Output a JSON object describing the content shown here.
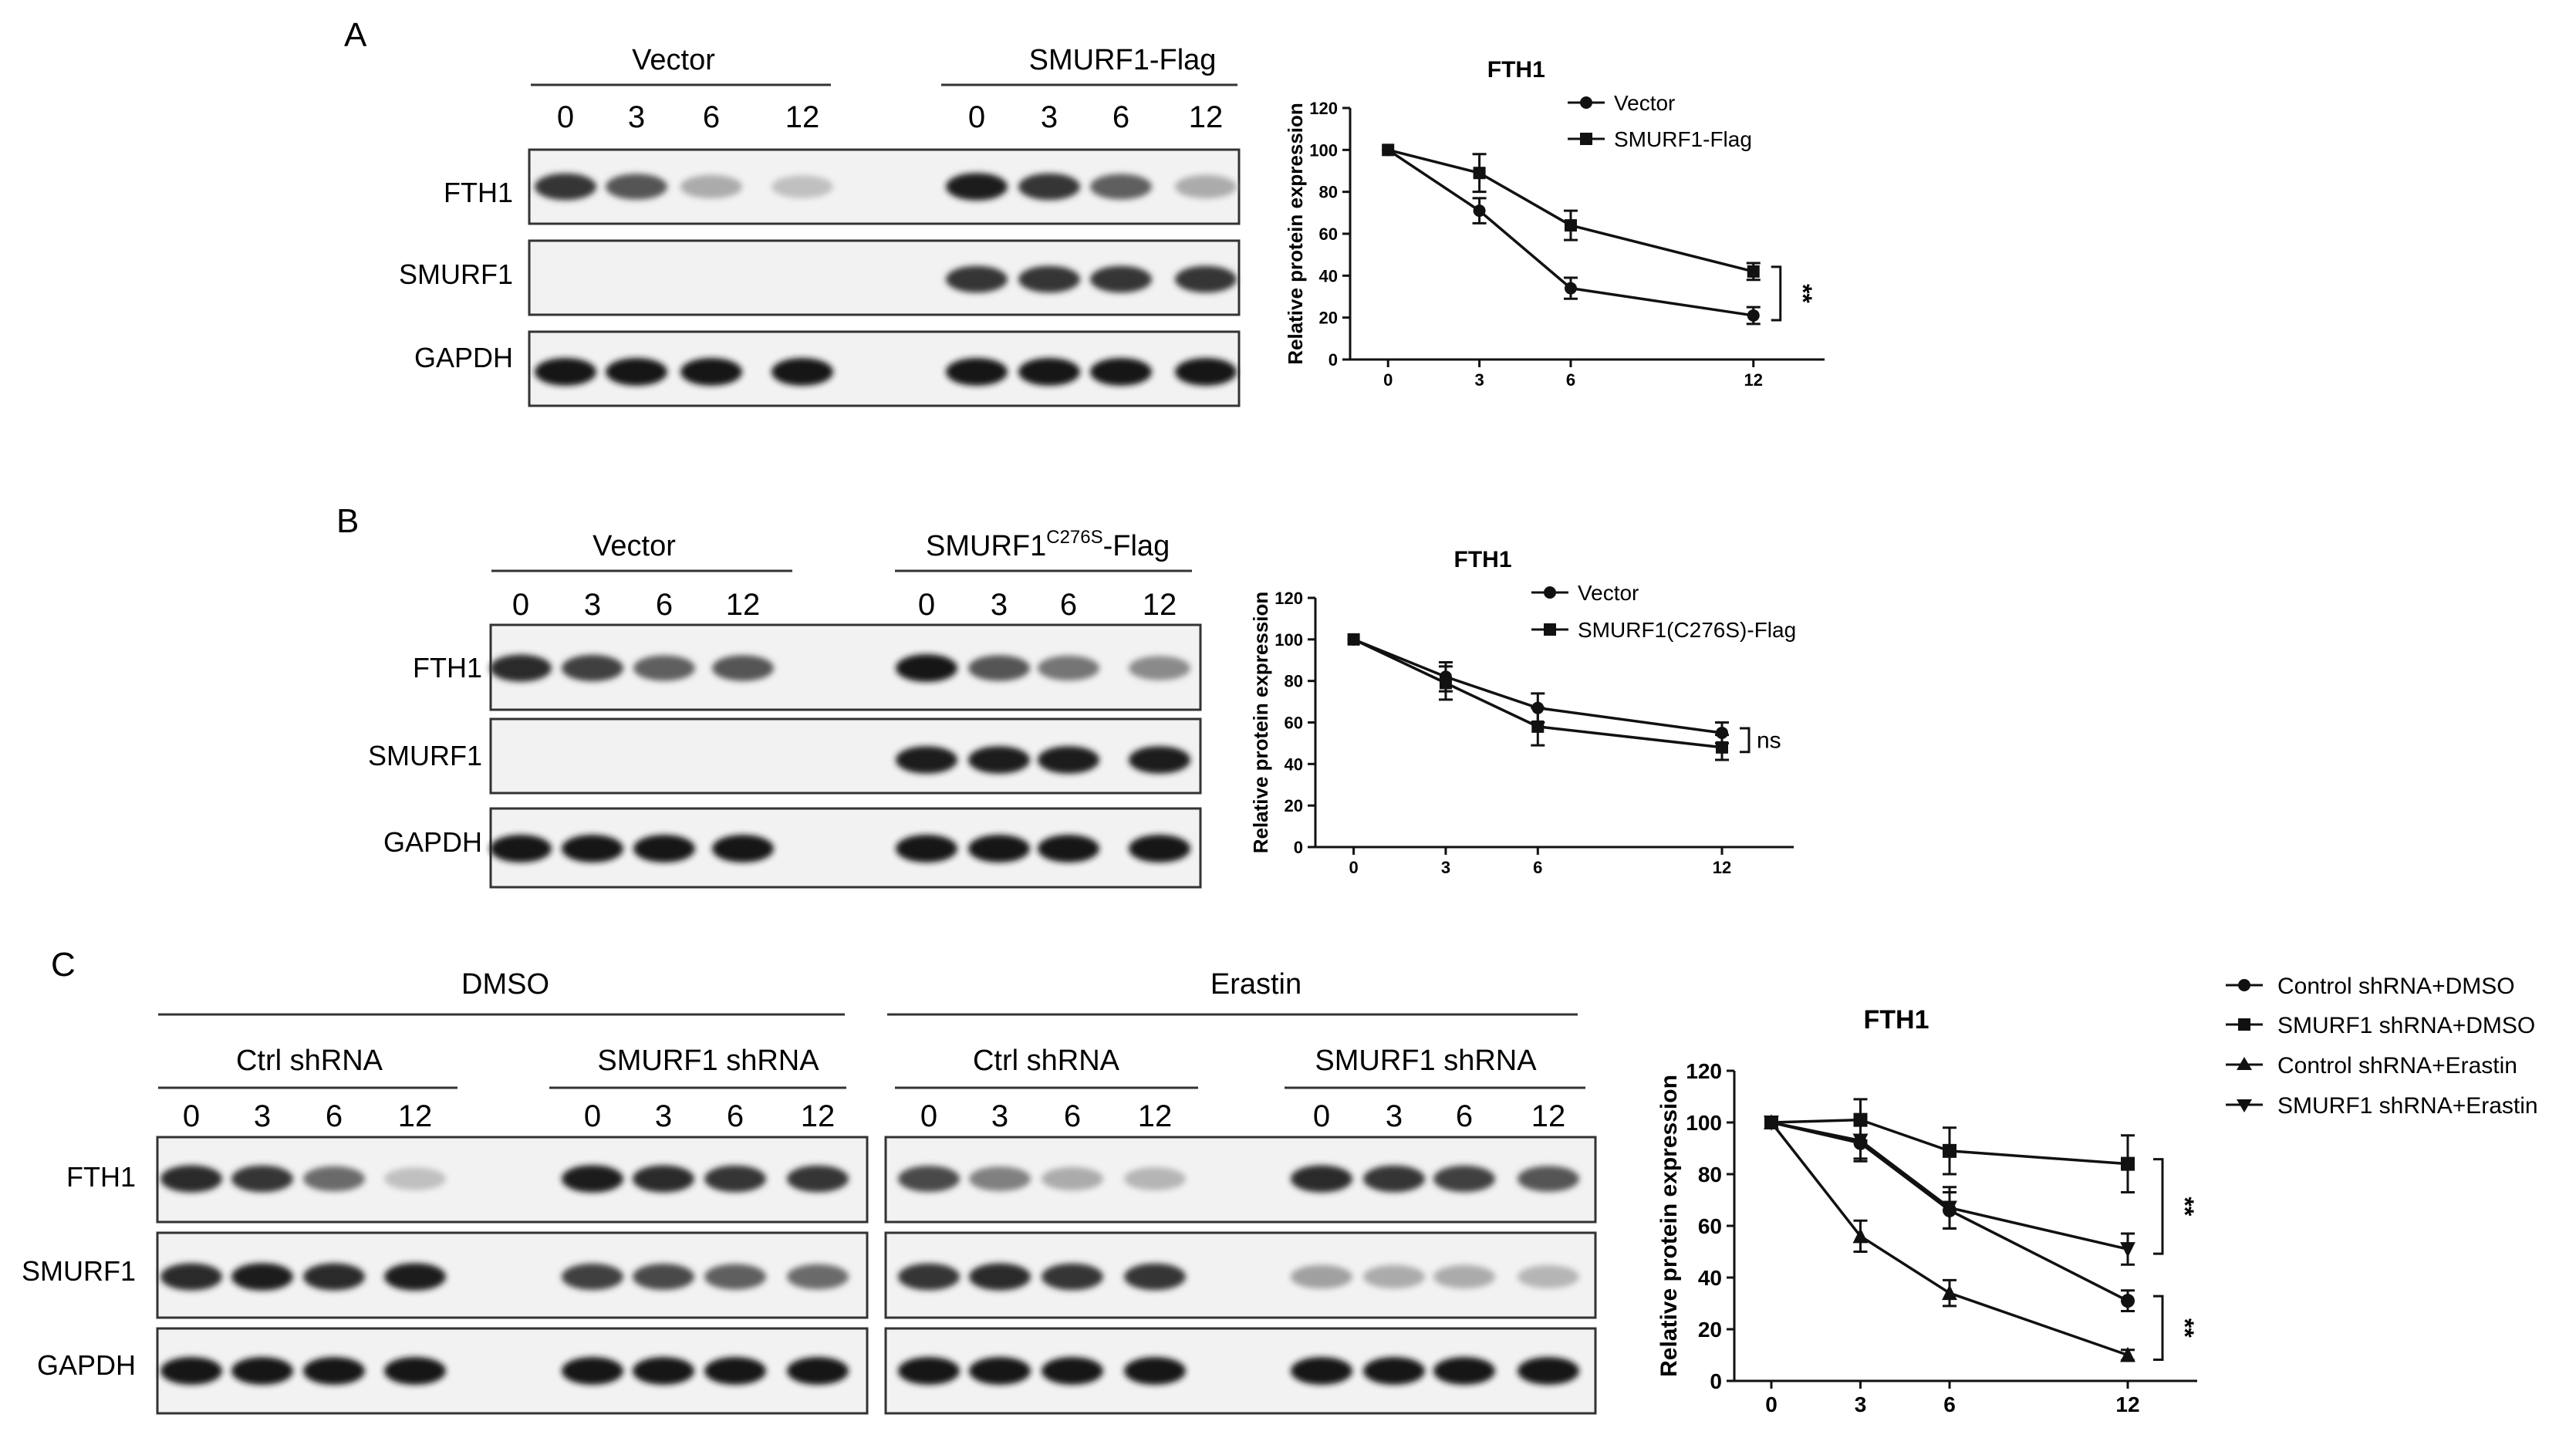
{
  "panels": [
    {
      "letter": "A",
      "blot": {
        "groups": [
          {
            "label": "Vector",
            "times": [
              "0",
              "3",
              "6",
              "12"
            ]
          },
          {
            "label": "SMURF1-Flag",
            "times": [
              "0",
              "3",
              "6",
              "12"
            ]
          }
        ],
        "rows": [
          {
            "label": "FTH1",
            "intensity": [
              [
                0.85,
                0.7,
                0.3,
                0.2
              ],
              [
                0.95,
                0.85,
                0.65,
                0.3
              ]
            ]
          },
          {
            "label": "SMURF1",
            "intensity": [
              [
                0,
                0,
                0,
                0
              ],
              [
                0.85,
                0.85,
                0.85,
                0.85
              ]
            ]
          },
          {
            "label": "GAPDH",
            "intensity": [
              [
                1,
                1,
                1,
                1
              ],
              [
                1,
                1,
                1,
                1
              ]
            ]
          }
        ]
      },
      "chart_data": {
        "type": "line",
        "title": "FTH1",
        "ylabel": "Relative protein expression",
        "xlabel": "",
        "x": [
          0,
          3,
          6,
          12
        ],
        "ylim": [
          0,
          120
        ],
        "yticks": [
          0,
          20,
          40,
          60,
          80,
          100,
          120
        ],
        "legend_position": "top-right",
        "series": [
          {
            "name": "Vector",
            "marker": "circle",
            "values": [
              100,
              71,
              34,
              21
            ],
            "errors": [
              0,
              6,
              5,
              4
            ]
          },
          {
            "name": "SMURF1-Flag",
            "marker": "square",
            "values": [
              100,
              89,
              64,
              42
            ],
            "errors": [
              0,
              9,
              7,
              4
            ]
          }
        ],
        "annotations": [
          {
            "text": "**",
            "between": [
              0,
              1
            ]
          }
        ]
      }
    },
    {
      "letter": "B",
      "blot": {
        "groups": [
          {
            "label": "Vector",
            "times": [
              "0",
              "3",
              "6",
              "12"
            ]
          },
          {
            "label": "SMURF1",
            "label_sup": "C276S",
            "label_suffix": "-Flag",
            "times": [
              "0",
              "3",
              "6",
              "12"
            ]
          }
        ],
        "rows": [
          {
            "label": "FTH1",
            "intensity": [
              [
                0.9,
                0.8,
                0.65,
                0.7
              ],
              [
                1,
                0.7,
                0.55,
                0.45
              ]
            ]
          },
          {
            "label": "SMURF1",
            "intensity": [
              [
                0,
                0,
                0,
                0
              ],
              [
                0.95,
                0.95,
                0.95,
                0.95
              ]
            ]
          },
          {
            "label": "GAPDH",
            "intensity": [
              [
                1,
                1,
                1,
                1
              ],
              [
                1,
                1,
                1,
                1
              ]
            ]
          }
        ]
      },
      "chart_data": {
        "type": "line",
        "title": "FTH1",
        "ylabel": "Relative protein expression",
        "xlabel": "",
        "x": [
          0,
          3,
          6,
          12
        ],
        "ylim": [
          0,
          120
        ],
        "yticks": [
          0,
          20,
          40,
          60,
          80,
          100,
          120
        ],
        "legend_position": "top-right",
        "series": [
          {
            "name": "Vector",
            "marker": "circle",
            "values": [
              100,
              82,
              67,
              55
            ],
            "errors": [
              0,
              7,
              7,
              5
            ]
          },
          {
            "name": "SMURF1(C276S)-Flag",
            "marker": "square",
            "values": [
              100,
              79,
              58,
              48
            ],
            "errors": [
              0,
              8,
              9,
              6
            ]
          }
        ],
        "annotations": [
          {
            "text": "ns",
            "between": [
              0,
              1
            ]
          }
        ]
      }
    },
    {
      "letter": "C",
      "blot": {
        "treatments": [
          "DMSO",
          "Erastin"
        ],
        "groups": [
          {
            "label": "Ctrl shRNA",
            "times": [
              "0",
              "3",
              "6",
              "12"
            ]
          },
          {
            "label": "SMURF1 shRNA",
            "times": [
              "0",
              "3",
              "6",
              "12"
            ]
          },
          {
            "label": "Ctrl shRNA",
            "times": [
              "0",
              "3",
              "6",
              "12"
            ]
          },
          {
            "label": "SMURF1 shRNA",
            "times": [
              "0",
              "3",
              "6",
              "12"
            ]
          }
        ],
        "rows": [
          {
            "label": "FTH1",
            "intensity": [
              [
                0.9,
                0.85,
                0.6,
                0.2
              ],
              [
                0.95,
                0.9,
                0.85,
                0.85
              ],
              [
                0.75,
                0.5,
                0.3,
                0.25
              ],
              [
                0.9,
                0.85,
                0.8,
                0.7
              ]
            ]
          },
          {
            "label": "SMURF1",
            "intensity": [
              [
                0.9,
                0.95,
                0.9,
                0.95
              ],
              [
                0.8,
                0.75,
                0.65,
                0.6
              ],
              [
                0.85,
                0.9,
                0.85,
                0.85
              ],
              [
                0.35,
                0.3,
                0.3,
                0.25
              ]
            ]
          },
          {
            "label": "GAPDH",
            "intensity": [
              [
                1,
                1,
                1,
                1
              ],
              [
                1,
                1,
                1,
                1
              ],
              [
                1,
                1,
                1,
                1
              ],
              [
                1,
                1,
                1,
                1
              ]
            ]
          }
        ]
      },
      "chart_data": {
        "type": "line",
        "title": "FTH1",
        "ylabel": "Relative protein expression",
        "xlabel": "",
        "x": [
          0,
          3,
          6,
          12
        ],
        "ylim": [
          0,
          120
        ],
        "yticks": [
          0,
          20,
          40,
          60,
          80,
          100,
          120
        ],
        "legend_position": "top-right",
        "series": [
          {
            "name": "Control shRNA+DMSO",
            "marker": "circle",
            "values": [
              100,
              92,
              66,
              31
            ],
            "errors": [
              0,
              7,
              7,
              4
            ]
          },
          {
            "name": "SMURF1 shRNA+DMSO",
            "marker": "square",
            "values": [
              100,
              101,
              89,
              84
            ],
            "errors": [
              0,
              8,
              9,
              11
            ]
          },
          {
            "name": "Control shRNA+Erastin",
            "marker": "triangle",
            "values": [
              100,
              56,
              34,
              10
            ],
            "errors": [
              0,
              6,
              5,
              2
            ]
          },
          {
            "name": "SMURF1 shRNA+Erastin",
            "marker": "triangle-down",
            "values": [
              100,
              93,
              67,
              51
            ],
            "errors": [
              0,
              7,
              8,
              6
            ]
          }
        ],
        "annotations": [
          {
            "text": "**",
            "between": [
              1,
              3
            ]
          },
          {
            "text": "**",
            "between": [
              0,
              2
            ]
          }
        ]
      }
    }
  ]
}
